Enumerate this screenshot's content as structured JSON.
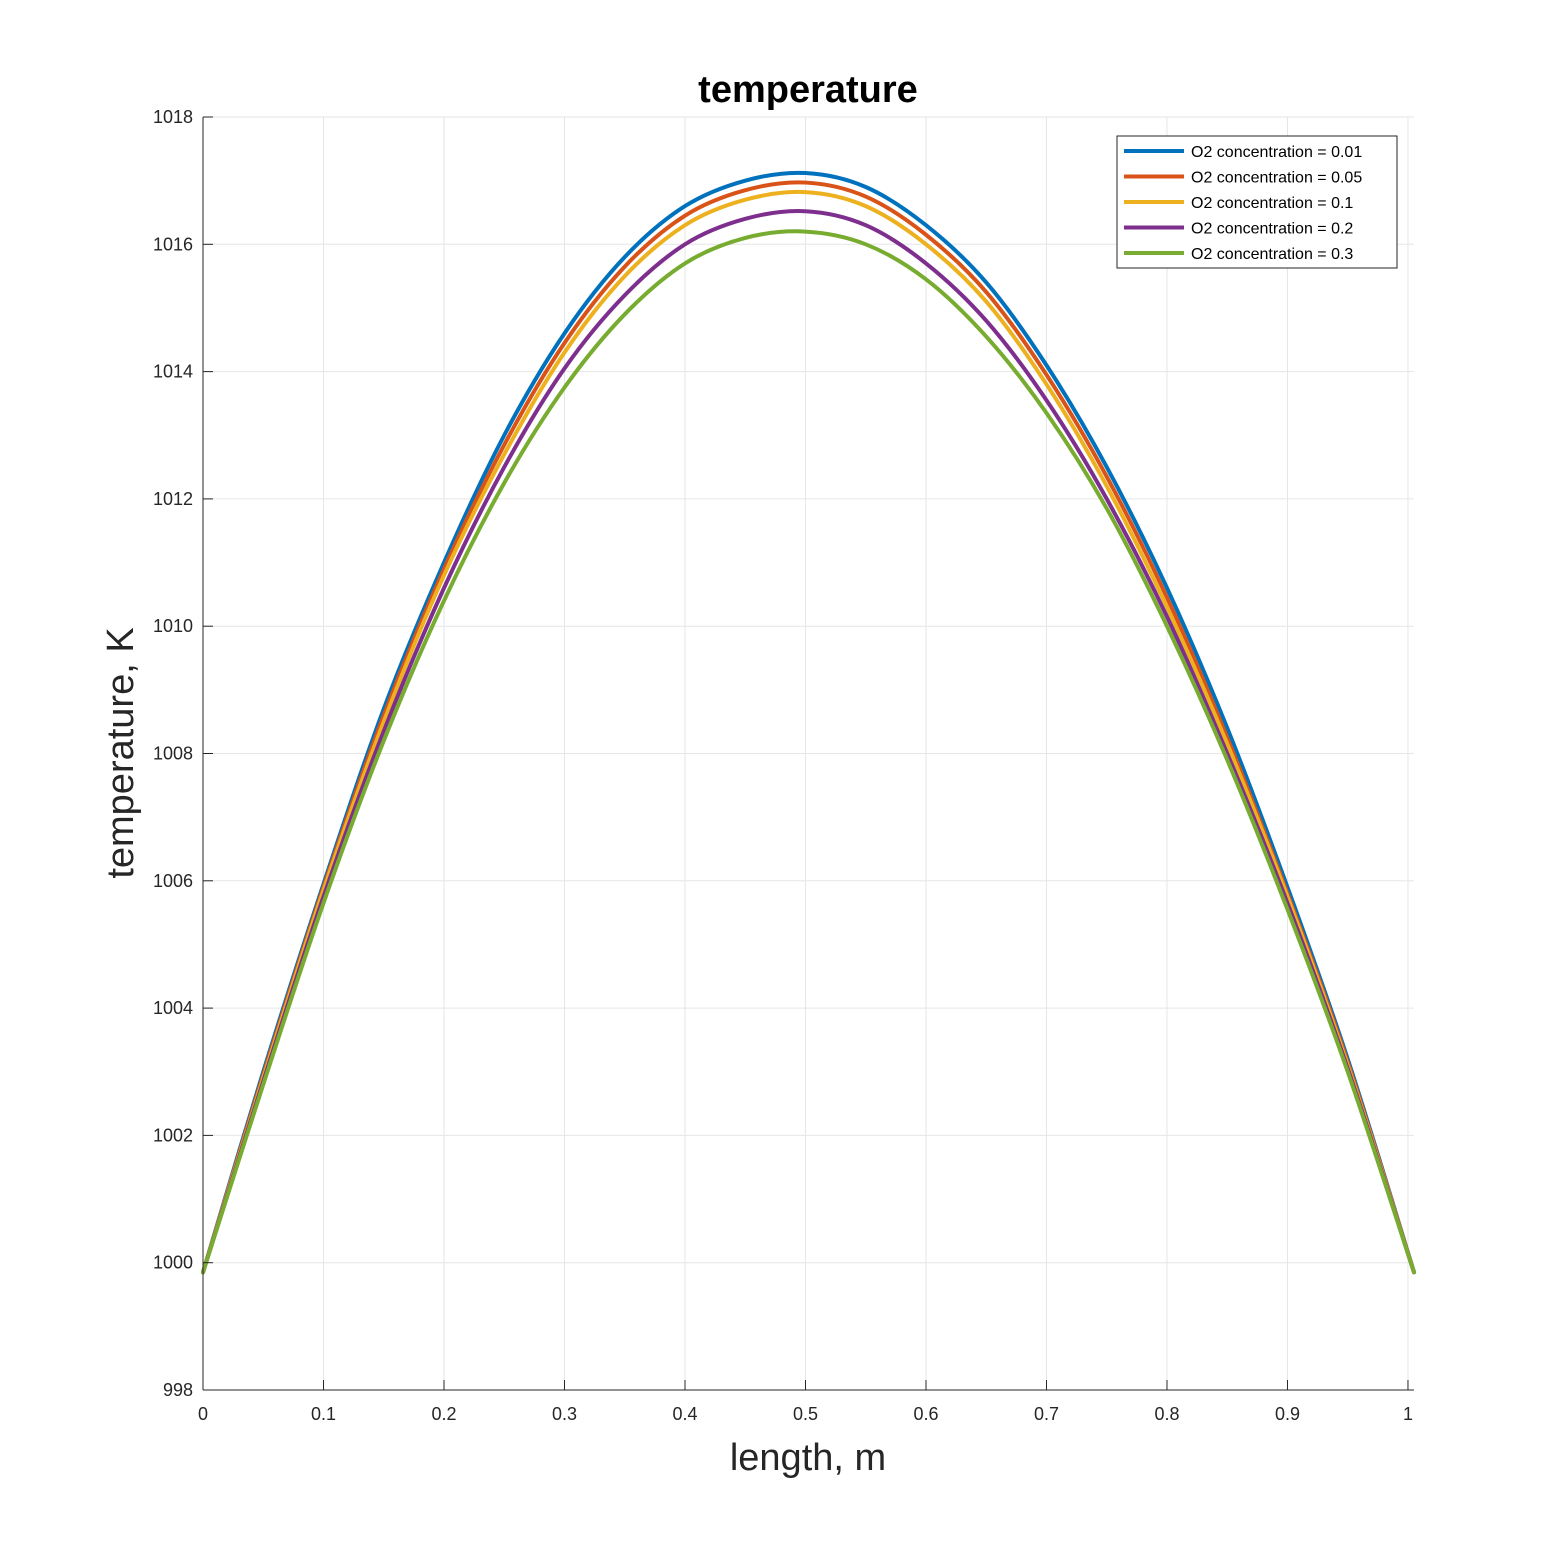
{
  "chart_data": {
    "type": "line",
    "title": "temperature",
    "xlabel": "length, m",
    "ylabel": "temperature, K",
    "xlim": [
      0,
      1.005
    ],
    "ylim": [
      998,
      1018
    ],
    "xticks": [
      0,
      0.1,
      0.2,
      0.3,
      0.4,
      0.5,
      0.6,
      0.7,
      0.8,
      0.9,
      1
    ],
    "xtick_labels": [
      "0",
      "0.1",
      "0.2",
      "0.3",
      "0.4",
      "0.5",
      "0.6",
      "0.7",
      "0.8",
      "0.9",
      "1"
    ],
    "yticks": [
      998,
      1000,
      1002,
      1004,
      1006,
      1008,
      1010,
      1012,
      1014,
      1016,
      1018
    ],
    "ytick_labels": [
      "998",
      "1000",
      "1002",
      "1004",
      "1006",
      "1008",
      "1010",
      "1012",
      "1014",
      "1016",
      "1018"
    ],
    "grid": true,
    "legend_position": "top-right",
    "x": [
      0,
      0.05,
      0.1,
      0.15,
      0.2,
      0.25,
      0.3,
      0.35,
      0.4,
      0.45,
      0.5,
      0.55,
      0.6,
      0.65,
      0.7,
      0.75,
      0.8,
      0.85,
      0.9,
      0.95,
      1.005
    ],
    "series": [
      {
        "name": "O2 concentration = 0.01",
        "color": "#0072BD",
        "values": [
          999.85,
          1003.0,
          1005.95,
          1008.7,
          1011.0,
          1013.0,
          1014.6,
          1015.8,
          1016.6,
          1017.0,
          1017.12,
          1016.9,
          1016.3,
          1015.4,
          1014.1,
          1012.5,
          1010.6,
          1008.4,
          1005.9,
          1003.2,
          999.85
        ]
      },
      {
        "name": "O2 concentration = 0.05",
        "color": "#D95319",
        "values": [
          999.85,
          1002.95,
          1005.9,
          1008.6,
          1010.9,
          1012.85,
          1014.45,
          1015.65,
          1016.45,
          1016.85,
          1016.97,
          1016.75,
          1016.15,
          1015.25,
          1013.95,
          1012.35,
          1010.45,
          1008.25,
          1005.8,
          1003.15,
          999.85
        ]
      },
      {
        "name": "O2 concentration = 0.1",
        "color": "#EDB120",
        "values": [
          999.85,
          1002.9,
          1005.85,
          1008.5,
          1010.8,
          1012.7,
          1014.3,
          1015.5,
          1016.3,
          1016.7,
          1016.82,
          1016.6,
          1016.0,
          1015.1,
          1013.8,
          1012.2,
          1010.3,
          1008.15,
          1005.75,
          1003.1,
          999.85
        ]
      },
      {
        "name": "O2 concentration = 0.2",
        "color": "#7E2F8E",
        "values": [
          999.85,
          1002.85,
          1005.75,
          1008.35,
          1010.6,
          1012.5,
          1014.05,
          1015.2,
          1016.0,
          1016.4,
          1016.52,
          1016.3,
          1015.7,
          1014.8,
          1013.55,
          1012.0,
          1010.15,
          1008.0,
          1005.65,
          1003.05,
          999.85
        ]
      },
      {
        "name": "O2 concentration = 0.3",
        "color": "#77AC30",
        "values": [
          999.85,
          1002.8,
          1005.65,
          1008.2,
          1010.4,
          1012.25,
          1013.75,
          1014.9,
          1015.7,
          1016.1,
          1016.2,
          1016.0,
          1015.45,
          1014.55,
          1013.35,
          1011.85,
          1010.0,
          1007.9,
          1005.55,
          1003.0,
          999.85
        ]
      }
    ]
  }
}
